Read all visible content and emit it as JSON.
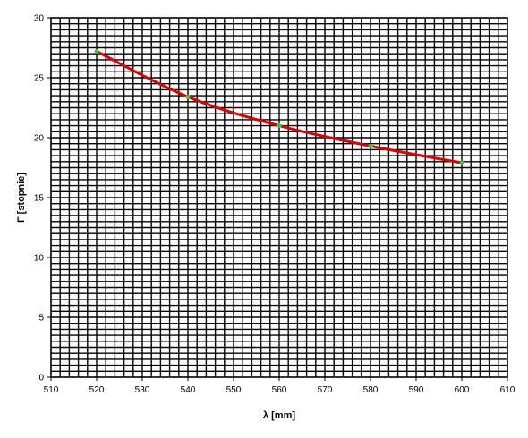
{
  "chart_data": {
    "type": "line",
    "title": "",
    "xlabel": "λ [mm]",
    "ylabel": "Γ  [stopnie]",
    "xlim": [
      510,
      610
    ],
    "ylim": [
      0,
      30
    ],
    "x_ticks": [
      510,
      520,
      530,
      540,
      550,
      560,
      570,
      580,
      590,
      600,
      610
    ],
    "y_ticks": [
      0,
      5,
      10,
      15,
      20,
      25,
      30
    ],
    "grid": true,
    "legend": "none",
    "series": [
      {
        "x": [
          520,
          540,
          560,
          580,
          600
        ],
        "y": [
          27.2,
          23.4,
          21.0,
          19.3,
          17.9
        ],
        "line_color": "#e00000",
        "marker_color": "#33cc33"
      }
    ]
  }
}
